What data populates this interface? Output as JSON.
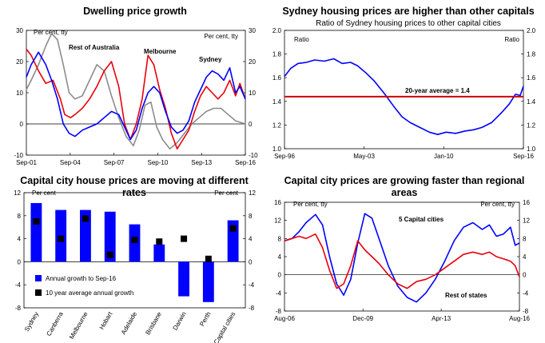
{
  "chart_data": [
    {
      "type": "line",
      "title": "Dwelling price growth",
      "ylabel_left": "Per cent, tty",
      "ylabel_right": "Per cent, tty",
      "ylim": [
        -10,
        30
      ],
      "yticks": [
        -10,
        0,
        10,
        20,
        30
      ],
      "xlim": [
        2001.67,
        2016.67
      ],
      "xticks": [
        {
          "v": 2001.67,
          "label": "Sep-01"
        },
        {
          "v": 2004.67,
          "label": "Sep-04"
        },
        {
          "v": 2007.67,
          "label": "Sep-07"
        },
        {
          "v": 2010.67,
          "label": "Sep-10"
        },
        {
          "v": 2013.67,
          "label": "Sep-13"
        },
        {
          "v": 2016.67,
          "label": "Sep-16"
        }
      ],
      "series": [
        {
          "name": "Rest of Australia",
          "color": "#8c8c8c",
          "x": [
            2001.67,
            2002.0,
            2002.5,
            2003.0,
            2003.4,
            2003.8,
            2004.2,
            2004.6,
            2005.0,
            2005.5,
            2006.0,
            2006.5,
            2007.0,
            2007.5,
            2008.0,
            2008.5,
            2009.0,
            2009.4,
            2009.8,
            2010.2,
            2010.6,
            2011.0,
            2011.5,
            2012.0,
            2012.5,
            2013.0,
            2013.5,
            2014.0,
            2014.5,
            2015.0,
            2015.5,
            2016.0,
            2016.67
          ],
          "y": [
            11,
            14,
            19,
            25,
            29,
            27,
            19,
            10,
            8,
            9,
            14,
            19,
            17,
            9,
            2,
            -4,
            -7,
            -2,
            6,
            7,
            -1,
            -5,
            -8,
            -6,
            -3,
            0,
            2,
            4,
            5,
            5,
            3,
            1,
            0
          ]
        },
        {
          "name": "Melbourne",
          "color": "#e8000b",
          "x": [
            2001.67,
            2002.0,
            2002.5,
            2003.0,
            2003.5,
            2004.0,
            2004.3,
            2004.7,
            2005.0,
            2005.5,
            2006.0,
            2006.5,
            2007.0,
            2007.5,
            2008.0,
            2008.4,
            2008.8,
            2009.2,
            2009.6,
            2010.0,
            2010.4,
            2010.8,
            2011.2,
            2011.6,
            2012.0,
            2012.4,
            2012.8,
            2013.2,
            2013.6,
            2014.0,
            2014.4,
            2014.8,
            2015.2,
            2015.6,
            2016.0,
            2016.3,
            2016.67
          ],
          "y": [
            24,
            22,
            17,
            13,
            14,
            8,
            3,
            2,
            3,
            5,
            8,
            12,
            17,
            20,
            12,
            0,
            -5,
            0,
            8,
            22,
            19,
            11,
            5,
            -3,
            -8,
            -5,
            -2,
            4,
            9,
            12,
            10,
            8,
            10,
            14,
            9,
            13,
            8
          ]
        },
        {
          "name": "Sydney",
          "color": "#0000ff",
          "x": [
            2001.67,
            2002.0,
            2002.5,
            2003.0,
            2003.4,
            2003.8,
            2004.2,
            2004.6,
            2005.0,
            2005.5,
            2006.0,
            2006.5,
            2007.0,
            2007.5,
            2008.0,
            2008.4,
            2008.8,
            2009.2,
            2009.6,
            2010.0,
            2010.4,
            2010.8,
            2011.2,
            2011.6,
            2012.0,
            2012.4,
            2012.8,
            2013.2,
            2013.6,
            2014.0,
            2014.4,
            2014.8,
            2015.2,
            2015.6,
            2016.0,
            2016.3,
            2016.67
          ],
          "y": [
            15,
            19,
            23,
            19,
            14,
            8,
            0,
            -3,
            -4,
            -2,
            -1,
            0,
            2,
            4,
            3,
            -1,
            -5,
            -2,
            5,
            10,
            12,
            10,
            4,
            -1,
            -3,
            -2,
            1,
            7,
            11,
            15,
            17,
            16,
            14,
            18,
            10,
            12,
            8
          ]
        }
      ],
      "labels": [
        {
          "text": "Rest of Australia",
          "color": "#8c8c8c"
        },
        {
          "text": "Melbourne",
          "color": "#e8000b"
        },
        {
          "text": "Sydney",
          "color": "#0000ff"
        }
      ]
    },
    {
      "type": "line",
      "title": "Sydney housing prices are higher than other capitals",
      "subtitle": "Ratio of Sydney housing prices to other capital cities",
      "ylabel_left": "Ratio",
      "ylabel_right": "Ratio",
      "ylim": [
        1.0,
        2.0
      ],
      "yticks": [
        1.0,
        1.2,
        1.4,
        1.6,
        1.8,
        2.0
      ],
      "xlim": [
        1996.67,
        2016.67
      ],
      "xticks": [
        {
          "v": 1996.67,
          "label": "Sep-96"
        },
        {
          "v": 2003.33,
          "label": "May-03"
        },
        {
          "v": 2010.0,
          "label": "Jan-10"
        },
        {
          "v": 2016.67,
          "label": "Sep-16"
        }
      ],
      "series": [
        {
          "name": "Sydney / other capitals",
          "color": "#0000ff",
          "x": [
            1996.67,
            1997.2,
            1997.8,
            1998.5,
            1999.2,
            2000.0,
            2000.8,
            2001.5,
            2002.2,
            2002.8,
            2003.5,
            2004.2,
            2005.0,
            2005.8,
            2006.5,
            2007.2,
            2008.0,
            2008.8,
            2009.5,
            2010.2,
            2011.0,
            2011.8,
            2012.5,
            2013.2,
            2014.0,
            2014.8,
            2015.5,
            2016.0,
            2016.4,
            2016.67
          ],
          "y": [
            1.61,
            1.68,
            1.72,
            1.73,
            1.75,
            1.74,
            1.76,
            1.72,
            1.73,
            1.7,
            1.64,
            1.57,
            1.47,
            1.36,
            1.27,
            1.22,
            1.18,
            1.14,
            1.12,
            1.14,
            1.13,
            1.15,
            1.16,
            1.18,
            1.22,
            1.3,
            1.38,
            1.46,
            1.45,
            1.53
          ]
        },
        {
          "name": "20-year average",
          "color": "#cc0000",
          "x": [
            1996.67,
            2016.67
          ],
          "y": [
            1.44,
            1.44
          ]
        }
      ],
      "labels": [
        {
          "text": "20-year average = 1.4",
          "color": "#cc0000"
        }
      ]
    },
    {
      "type": "bar",
      "title": "Capital city house prices are moving at different rates",
      "ylabel_left": "Per cent",
      "ylabel_right": "Per cent",
      "ylim": [
        -8,
        12
      ],
      "yticks": [
        -8,
        -4,
        0,
        4,
        8,
        12
      ],
      "categories": [
        "Sydney",
        "Canberra",
        "Melbourne",
        "Hobart",
        "Adelaide",
        "Brisbane",
        "Darwin",
        "Perth",
        "Capital cities"
      ],
      "series": [
        {
          "name": "Annual growth to Sep-16",
          "color": "#0000ff",
          "values": [
            10.2,
            9.0,
            9.0,
            8.7,
            6.5,
            3.0,
            -6.0,
            -7.0,
            7.2
          ]
        },
        {
          "name": "10 year average annual growth",
          "color": "#000000",
          "values": [
            7.0,
            4.0,
            7.5,
            1.2,
            3.8,
            3.5,
            4.0,
            0.5,
            5.8
          ]
        }
      ]
    },
    {
      "type": "line",
      "title": "Capital city prices are growing faster than regional areas",
      "ylabel_left": "Per cent, tty",
      "ylabel_right": "Per cent, tty",
      "ylim": [
        -8,
        16
      ],
      "yticks": [
        -8,
        -4,
        0,
        4,
        8,
        12,
        16
      ],
      "xlim": [
        2006.58,
        2016.58
      ],
      "xticks": [
        {
          "v": 2006.58,
          "label": "Aug-06"
        },
        {
          "v": 2009.92,
          "label": "Dec-09"
        },
        {
          "v": 2013.25,
          "label": "Apr-13"
        },
        {
          "v": 2016.58,
          "label": "Aug-16"
        }
      ],
      "series": [
        {
          "name": "5 Capital cities",
          "color": "#0000ff",
          "x": [
            2006.58,
            2006.9,
            2007.2,
            2007.5,
            2007.9,
            2008.2,
            2008.5,
            2008.8,
            2009.1,
            2009.4,
            2009.7,
            2010.0,
            2010.3,
            2010.6,
            2011.0,
            2011.4,
            2011.8,
            2012.2,
            2012.6,
            2013.0,
            2013.4,
            2013.8,
            2014.2,
            2014.6,
            2015.0,
            2015.3,
            2015.6,
            2015.9,
            2016.2,
            2016.4,
            2016.58
          ],
          "y": [
            7.5,
            8.0,
            9.5,
            11.5,
            13.3,
            11.0,
            4.0,
            -2.0,
            -4.5,
            -1.0,
            7.0,
            13.5,
            12.5,
            8.0,
            2.0,
            -2.5,
            -5.0,
            -6.0,
            -4.0,
            -1.0,
            3.0,
            7.5,
            10.5,
            11.5,
            10.0,
            11.0,
            8.5,
            9.0,
            10.5,
            6.5,
            7.0
          ]
        },
        {
          "name": "Rest of states",
          "color": "#e8000b",
          "x": [
            2006.58,
            2006.9,
            2007.2,
            2007.5,
            2007.9,
            2008.2,
            2008.5,
            2008.8,
            2009.1,
            2009.4,
            2009.7,
            2010.0,
            2010.3,
            2010.6,
            2011.0,
            2011.4,
            2011.8,
            2012.2,
            2012.6,
            2013.0,
            2013.4,
            2013.8,
            2014.2,
            2014.6,
            2015.0,
            2015.3,
            2015.6,
            2015.9,
            2016.2,
            2016.4,
            2016.58
          ],
          "y": [
            7.5,
            8.0,
            8.5,
            8.0,
            9.0,
            6.0,
            1.0,
            -3.0,
            -2.0,
            2.0,
            7.5,
            5.5,
            4.0,
            2.5,
            0.0,
            -2.0,
            -3.0,
            -1.5,
            -1.0,
            0.0,
            1.5,
            3.0,
            4.5,
            5.0,
            4.5,
            5.0,
            4.0,
            3.5,
            3.0,
            2.0,
            -0.5
          ]
        }
      ],
      "labels": [
        {
          "text": "5 Capital cities",
          "color": "#0000ff"
        },
        {
          "text": "Rest of states",
          "color": "#e8000b"
        }
      ]
    }
  ]
}
